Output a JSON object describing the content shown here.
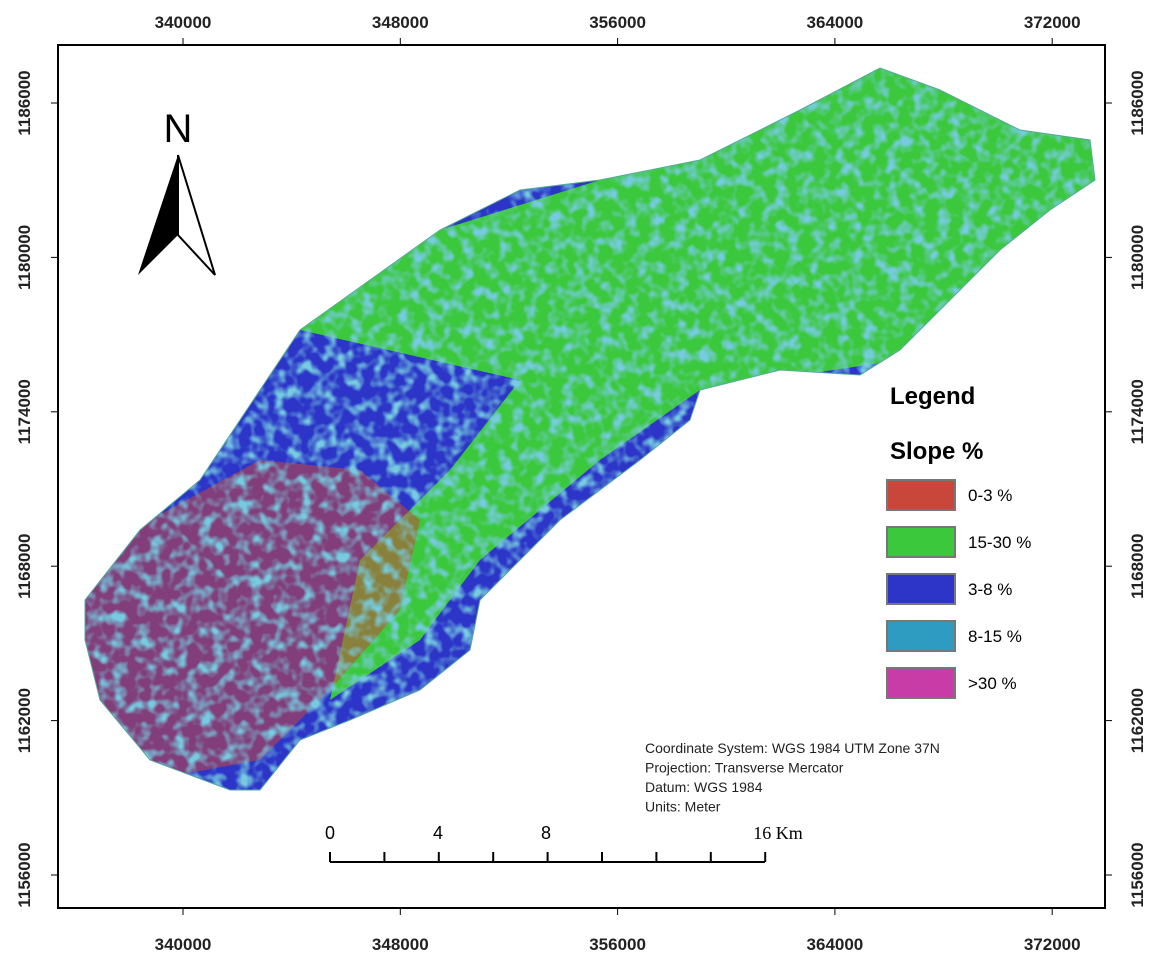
{
  "map": {
    "x_ticks": [
      "340000",
      "348000",
      "356000",
      "364000",
      "372000"
    ],
    "y_ticks": [
      "1186000",
      "1180000",
      "1174000",
      "1168000",
      "1162000",
      "1156000"
    ],
    "north_label": "N",
    "legend": {
      "title": "Legend",
      "subtitle": "Slope %",
      "items": [
        {
          "label": "0-3 %",
          "color": "#c8463a"
        },
        {
          "label": "15-30 %",
          "color": "#3cc83c"
        },
        {
          "label": "3-8 %",
          "color": "#2c35c8"
        },
        {
          "label": "8-15 %",
          "color": "#2e9bc0"
        },
        {
          "label": ">30 %",
          "color": "#c83ca8"
        }
      ]
    },
    "info": [
      "Coordinate System: WGS 1984 UTM Zone 37N",
      "Projection: Transverse Mercator",
      "Datum: WGS 1984",
      "Units: Meter"
    ],
    "scale_bar": {
      "labels": [
        "0",
        "4",
        "8",
        "16 Km"
      ]
    }
  }
}
